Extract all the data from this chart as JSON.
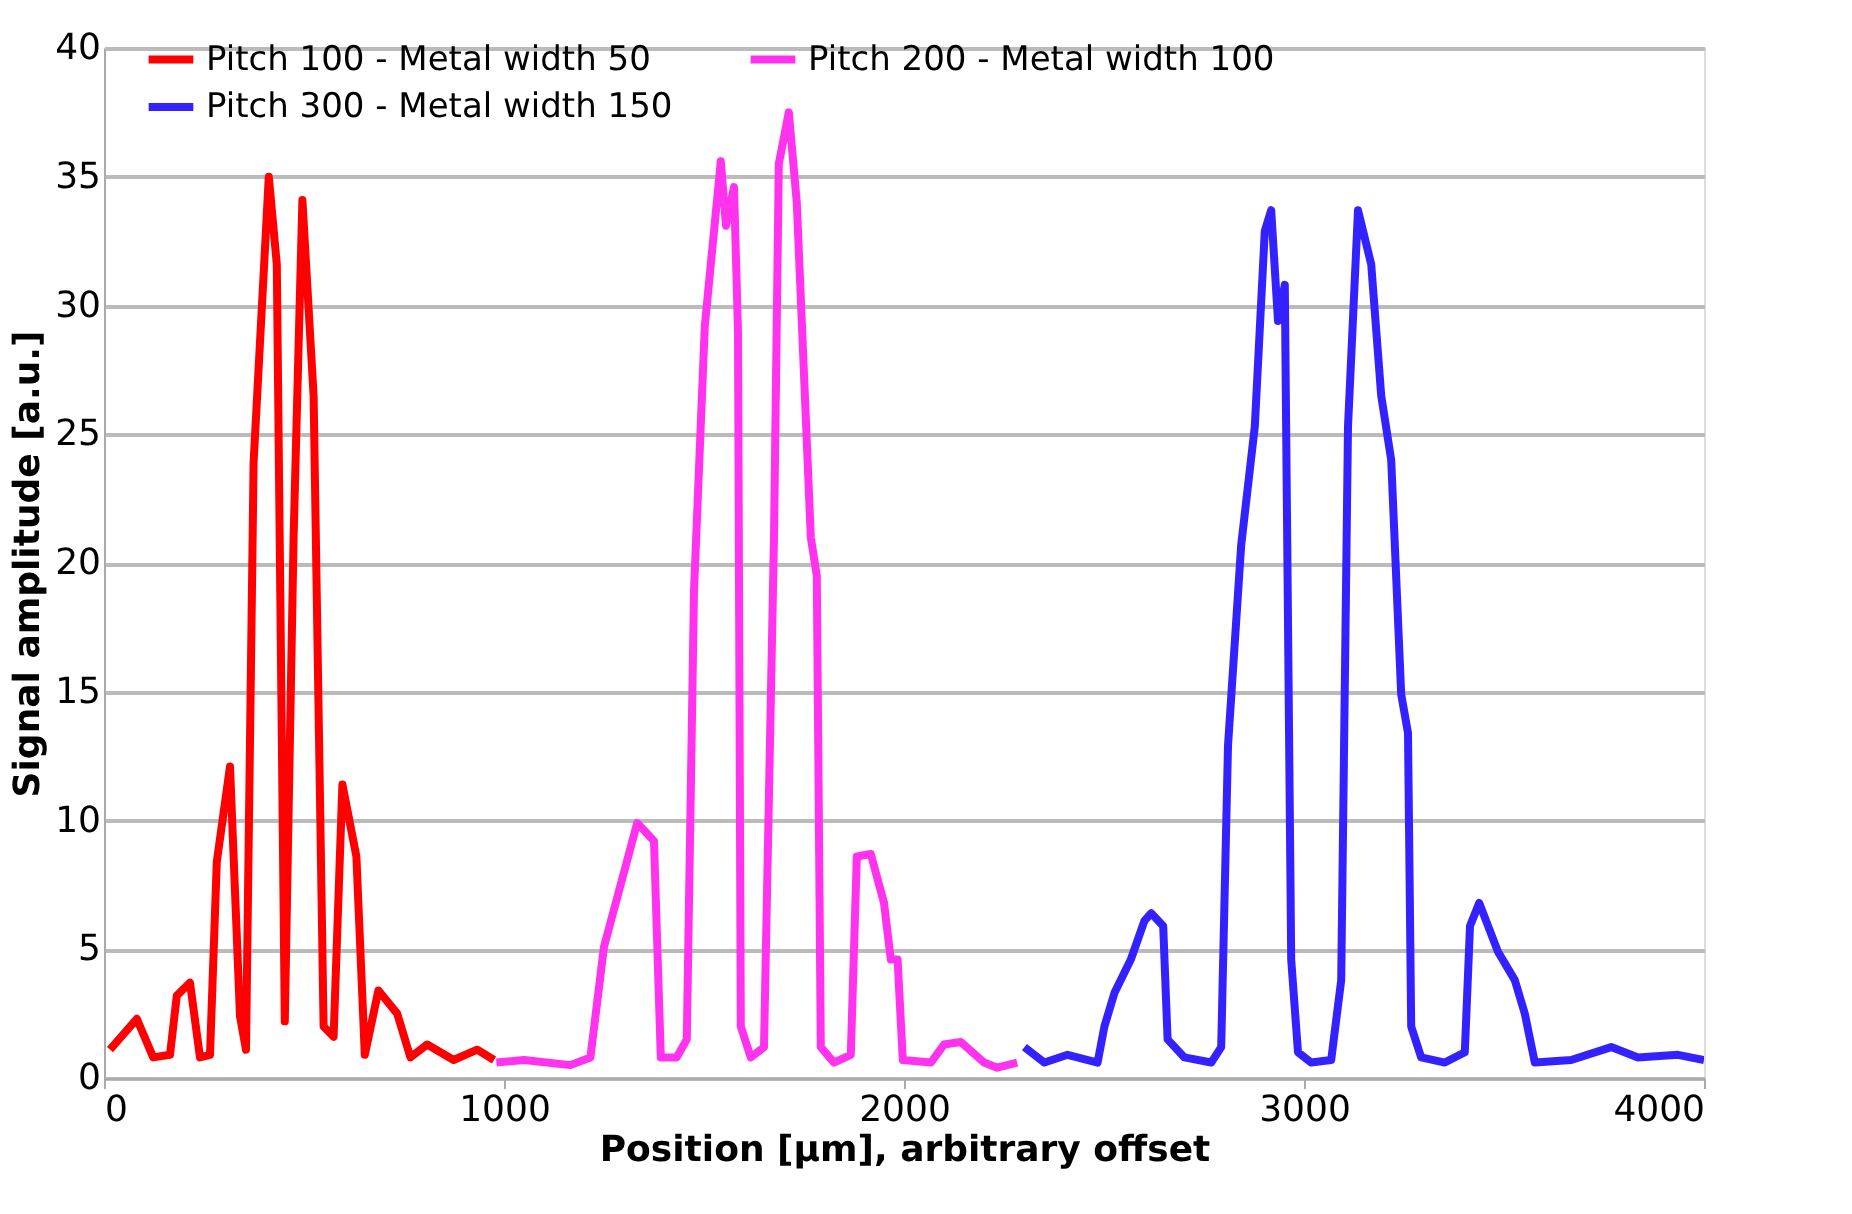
{
  "chart_data": {
    "type": "line",
    "xlabel": "Position [µm], arbitrary offset",
    "ylabel": "Signal amplitude [a.u.]",
    "xlim": [
      0,
      4000
    ],
    "xticks": [
      0,
      1000,
      2000,
      3000,
      4000
    ],
    "ylim": [
      0,
      40
    ],
    "yticks": [
      0,
      5,
      10,
      15,
      20,
      25,
      30,
      35,
      40
    ],
    "grid": "y",
    "legend": "top",
    "marker": "none",
    "line_style": "solid",
    "series": [
      {
        "name": "Pitch 100 - Metal width 50",
        "color": "#ff0000",
        "x": [
          15,
          82,
          123,
          165,
          182,
          215,
          240,
          265,
          282,
          315,
          340,
          355,
          374,
          412,
          432,
          452,
          474,
          496,
          524,
          549,
          574,
          596,
          631,
          652,
          686,
          733,
          766,
          808,
          874,
          933,
          975
        ],
        "values": [
          1.1,
          2.3,
          0.8,
          0.9,
          3.2,
          3.7,
          0.8,
          0.9,
          8.4,
          12.1,
          2.4,
          1.1,
          23.9,
          35.0,
          31.6,
          2.2,
          21,
          34.1,
          26.5,
          2.0,
          1.6,
          11.4,
          8.6,
          0.9,
          3.4,
          2.5,
          0.8,
          1.3,
          0.7,
          1.1,
          0.7
        ]
      },
      {
        "name": "Pitch 200 - Metal width 100",
        "color": "#ff33ee",
        "x": [
          981,
          1050,
          1166,
          1216,
          1250,
          1333,
          1375,
          1392,
          1432,
          1457,
          1475,
          1502,
          1542,
          1555,
          1575,
          1585,
          1592,
          1617,
          1650,
          1675,
          1687,
          1712,
          1732,
          1767,
          1782,
          1792,
          1825,
          1867,
          1882,
          1917,
          1950,
          1967,
          1984,
          1997,
          2067,
          2100,
          2142,
          2200,
          2233,
          2283
        ],
        "values": [
          0.6,
          0.7,
          0.5,
          0.8,
          5.1,
          9.9,
          9.2,
          0.8,
          0.8,
          1.5,
          18.9,
          29.2,
          35.6,
          33.1,
          34.6,
          29,
          2,
          0.8,
          1.2,
          21,
          35.5,
          37.5,
          34,
          21,
          19.5,
          1.2,
          0.6,
          0.9,
          8.6,
          8.7,
          6.8,
          4.6,
          4.6,
          0.7,
          0.6,
          1.3,
          1.4,
          0.6,
          0.4,
          0.6
        ]
      },
      {
        "name": "Pitch 300 - Metal width 150",
        "color": "#3322ff",
        "x": [
          2301,
          2351,
          2409,
          2484,
          2501,
          2526,
          2567,
          2601,
          2618,
          2648,
          2659,
          2701,
          2768,
          2793,
          2810,
          2843,
          2877,
          2902,
          2918,
          2935,
          2952,
          2968,
          2985,
          3018,
          3068,
          3093,
          3110,
          3135,
          3168,
          3193,
          3218,
          3243,
          3260,
          3268,
          3293,
          3352,
          3402,
          3415,
          3438,
          3485,
          3527,
          3552,
          3577,
          3668,
          3768,
          3835,
          3935,
          4000
        ],
        "values": [
          1.2,
          0.6,
          0.9,
          0.6,
          2.0,
          3.3,
          4.6,
          6.1,
          6.4,
          5.9,
          1.5,
          0.8,
          0.6,
          1.2,
          12.9,
          20.7,
          25.3,
          32.9,
          33.7,
          29.4,
          30.8,
          4.6,
          1.0,
          0.6,
          0.7,
          3.8,
          25.3,
          33.7,
          31.6,
          26.5,
          24.0,
          14.9,
          13.4,
          2.0,
          0.8,
          0.6,
          1.0,
          5.9,
          6.8,
          4.9,
          3.8,
          2.5,
          0.6,
          0.7,
          1.2,
          0.8,
          0.9,
          0.7
        ]
      }
    ]
  }
}
